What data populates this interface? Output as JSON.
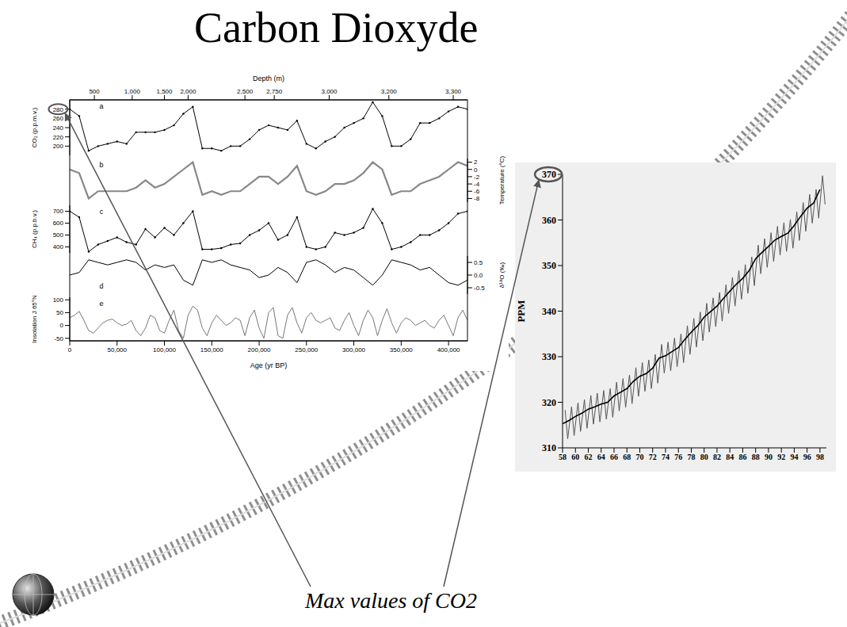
{
  "title": "Carbon Dioxyde",
  "annotation": "Max values of CO2",
  "chart_data": [
    {
      "type": "line",
      "xlabel": "Age (yr BP)",
      "xlim": [
        0,
        420000
      ],
      "xticks": [
        0,
        {
          "value": 50000,
          "label": "50,000"
        },
        {
          "value": 100000,
          "label": "100,000"
        },
        {
          "value": 150000,
          "label": "150,000"
        },
        {
          "value": 200000,
          "label": "200,000"
        },
        {
          "value": 250000,
          "label": "250,000"
        },
        {
          "value": 300000,
          "label": "300,000"
        },
        {
          "value": 350000,
          "label": "350,000"
        },
        {
          "value": 400000,
          "label": "400,000"
        }
      ],
      "x2label": "Depth (m)",
      "x2ticks": [
        {
          "value": 26000,
          "label": "500"
        },
        {
          "value": 66000,
          "label": "1,000"
        },
        {
          "value": 100000,
          "label": "1,500"
        },
        {
          "value": 125000,
          "label": "2,000"
        },
        {
          "value": 185000,
          "label": "2,500"
        },
        {
          "value": 216000,
          "label": "2,750"
        },
        {
          "value": 274000,
          "label": "3,000"
        },
        {
          "value": 337000,
          "label": "3,200"
        },
        {
          "value": 405000,
          "label": "3,300"
        }
      ],
      "series": [
        {
          "name": "a",
          "ylabel": "CO₂ (p.p.m.v.)",
          "color": "#000000",
          "marker": "circle",
          "ylim": [
            180,
            300
          ],
          "yticks": [
            200,
            220,
            240,
            260,
            280
          ],
          "x": [
            0,
            10000,
            20000,
            30000,
            40000,
            50000,
            60000,
            70000,
            80000,
            90000,
            100000,
            110000,
            120000,
            130000,
            140000,
            150000,
            160000,
            170000,
            180000,
            190000,
            200000,
            210000,
            220000,
            230000,
            240000,
            250000,
            260000,
            270000,
            280000,
            290000,
            300000,
            310000,
            320000,
            330000,
            340000,
            350000,
            360000,
            370000,
            380000,
            390000,
            400000,
            410000,
            420000
          ],
          "values": [
            280,
            265,
            190,
            200,
            205,
            210,
            205,
            230,
            230,
            230,
            235,
            245,
            270,
            285,
            195,
            195,
            190,
            200,
            200,
            215,
            235,
            245,
            240,
            235,
            255,
            205,
            195,
            210,
            220,
            240,
            250,
            260,
            295,
            265,
            200,
            200,
            215,
            250,
            250,
            260,
            275,
            285,
            280
          ]
        },
        {
          "name": "b",
          "ylabel": "Temperature (°C)",
          "axis": "y2",
          "color": "#888888",
          "ylim": [
            -9,
            3
          ],
          "yticks": [
            2,
            0,
            -2,
            -4,
            -6,
            -8
          ],
          "x": [
            0,
            10000,
            20000,
            30000,
            40000,
            50000,
            60000,
            70000,
            80000,
            90000,
            100000,
            110000,
            120000,
            130000,
            140000,
            150000,
            160000,
            170000,
            180000,
            190000,
            200000,
            210000,
            220000,
            230000,
            240000,
            250000,
            260000,
            270000,
            280000,
            290000,
            300000,
            310000,
            320000,
            330000,
            340000,
            350000,
            360000,
            370000,
            380000,
            390000,
            400000,
            410000,
            420000
          ],
          "values": [
            0,
            -1,
            -8,
            -6,
            -6,
            -6,
            -6,
            -5,
            -3,
            -5,
            -4,
            -2,
            0,
            2,
            -7,
            -6,
            -7,
            -6,
            -6,
            -4,
            -2,
            -2,
            -4,
            -2,
            1,
            -6,
            -7,
            -6,
            -4,
            -4,
            -3,
            -1,
            2,
            0,
            -7,
            -6,
            -6,
            -4,
            -3,
            -2,
            0,
            2,
            1
          ]
        },
        {
          "name": "c",
          "ylabel": "CH₄ (p.p.b.v.)",
          "color": "#000000",
          "marker": "circle",
          "ylim": [
            350,
            750
          ],
          "yticks": [
            400,
            500,
            600,
            700
          ],
          "x": [
            0,
            10000,
            20000,
            30000,
            40000,
            50000,
            60000,
            70000,
            80000,
            90000,
            100000,
            110000,
            120000,
            130000,
            140000,
            150000,
            160000,
            170000,
            180000,
            190000,
            200000,
            210000,
            220000,
            230000,
            240000,
            250000,
            260000,
            270000,
            280000,
            290000,
            300000,
            310000,
            320000,
            330000,
            340000,
            350000,
            360000,
            370000,
            380000,
            390000,
            400000,
            410000,
            420000
          ],
          "values": [
            700,
            650,
            360,
            420,
            450,
            480,
            440,
            420,
            550,
            480,
            560,
            500,
            600,
            700,
            380,
            380,
            390,
            420,
            430,
            500,
            540,
            600,
            460,
            500,
            650,
            400,
            380,
            400,
            520,
            500,
            520,
            560,
            720,
            600,
            380,
            400,
            440,
            500,
            500,
            540,
            600,
            680,
            700
          ]
        },
        {
          "name": "d",
          "ylabel": "δ¹⁸O (‰)",
          "axis": "y2",
          "color": "#000000",
          "ylim": [
            -0.75,
            0.75
          ],
          "yticks": [
            -0.5,
            {
              "value": 0,
              "label": "0.0"
            },
            0.5
          ],
          "x": [
            0,
            10000,
            20000,
            30000,
            40000,
            50000,
            60000,
            70000,
            80000,
            90000,
            100000,
            110000,
            120000,
            130000,
            140000,
            150000,
            160000,
            170000,
            180000,
            190000,
            200000,
            210000,
            220000,
            230000,
            240000,
            250000,
            260000,
            270000,
            280000,
            290000,
            300000,
            310000,
            320000,
            330000,
            340000,
            350000,
            360000,
            370000,
            380000,
            390000,
            400000,
            410000,
            420000
          ],
          "values": [
            0.0,
            0.1,
            0.6,
            0.5,
            0.4,
            0.5,
            0.6,
            0.5,
            0.2,
            0.4,
            0.3,
            0.4,
            -0.2,
            -0.4,
            0.6,
            0.5,
            0.6,
            0.4,
            0.3,
            0.2,
            -0.1,
            0.0,
            0.3,
            0.1,
            -0.3,
            0.5,
            0.6,
            0.4,
            0.1,
            0.3,
            0.2,
            -0.1,
            -0.4,
            0.0,
            0.6,
            0.5,
            0.4,
            0.2,
            0.3,
            0.0,
            -0.3,
            -0.4,
            -0.2
          ]
        },
        {
          "name": "e",
          "ylabel": "Insolation J 65°N",
          "color": "#777777",
          "ylim": [
            -60,
            110
          ],
          "yticks": [
            -50,
            0,
            50,
            100
          ],
          "x": [
            0,
            5000,
            10000,
            15000,
            20000,
            25000,
            30000,
            35000,
            40000,
            45000,
            50000,
            55000,
            60000,
            65000,
            70000,
            75000,
            80000,
            85000,
            90000,
            95000,
            100000,
            105000,
            110000,
            115000,
            120000,
            125000,
            130000,
            135000,
            140000,
            145000,
            150000,
            155000,
            160000,
            165000,
            170000,
            175000,
            180000,
            185000,
            190000,
            195000,
            200000,
            205000,
            210000,
            215000,
            220000,
            225000,
            230000,
            235000,
            240000,
            245000,
            250000,
            255000,
            260000,
            265000,
            270000,
            275000,
            280000,
            285000,
            290000,
            295000,
            300000,
            305000,
            310000,
            315000,
            320000,
            325000,
            330000,
            335000,
            340000,
            345000,
            350000,
            355000,
            360000,
            365000,
            370000,
            375000,
            380000,
            385000,
            390000,
            395000,
            400000,
            405000,
            410000,
            415000,
            420000
          ],
          "values": [
            30,
            40,
            55,
            20,
            -20,
            -30,
            -10,
            10,
            20,
            25,
            10,
            0,
            5,
            20,
            -20,
            -40,
            -10,
            40,
            30,
            -20,
            -30,
            20,
            60,
            -20,
            -50,
            40,
            75,
            60,
            -10,
            -40,
            10,
            40,
            20,
            0,
            10,
            30,
            20,
            -40,
            30,
            60,
            -10,
            -50,
            50,
            70,
            -40,
            -50,
            40,
            70,
            10,
            -30,
            30,
            50,
            20,
            10,
            20,
            30,
            -10,
            -20,
            20,
            50,
            0,
            -40,
            20,
            60,
            30,
            -40,
            20,
            65,
            10,
            -30,
            10,
            30,
            20,
            0,
            10,
            20,
            0,
            -10,
            20,
            40,
            0,
            -40,
            30,
            60,
            20
          ]
        }
      ]
    },
    {
      "type": "line",
      "ylabel": "PPM",
      "xlim": [
        58,
        99
      ],
      "xticks": [
        58,
        60,
        62,
        64,
        66,
        68,
        70,
        72,
        74,
        76,
        78,
        80,
        82,
        84,
        86,
        88,
        90,
        92,
        94,
        96,
        98
      ],
      "ylim": [
        310,
        370
      ],
      "yticks": [
        310,
        320,
        330,
        340,
        350,
        360,
        370
      ],
      "series": [
        {
          "color": "#555555",
          "x": [
            58.4,
            58.8,
            59.4,
            59.8,
            60.4,
            60.8,
            61.4,
            61.8,
            62.4,
            62.8,
            63.4,
            63.8,
            64.4,
            64.8,
            65.4,
            65.8,
            66.4,
            66.8,
            67.4,
            67.8,
            68.4,
            68.8,
            69.4,
            69.8,
            70.4,
            70.8,
            71.4,
            71.8,
            72.4,
            72.8,
            73.4,
            73.8,
            74.4,
            74.8,
            75.4,
            75.8,
            76.4,
            76.8,
            77.4,
            77.8,
            78.4,
            78.8,
            79.4,
            79.8,
            80.4,
            80.8,
            81.4,
            81.8,
            82.4,
            82.8,
            83.4,
            83.8,
            84.4,
            84.8,
            85.4,
            85.8,
            86.4,
            86.8,
            87.4,
            87.8,
            88.4,
            88.8,
            89.4,
            89.8,
            90.4,
            90.8,
            91.4,
            91.8,
            92.4,
            92.8,
            93.4,
            93.8,
            94.4,
            94.8,
            95.4,
            95.8,
            96.4,
            96.8,
            97.4,
            97.8,
            98.4,
            98.8
          ],
          "values": [
            318.3,
            312.0,
            319.0,
            312.7,
            319.9,
            313.6,
            320.6,
            314.3,
            321.5,
            315.2,
            322.0,
            315.7,
            322.6,
            316.3,
            323.0,
            316.7,
            324.4,
            318.1,
            325.2,
            318.9,
            326.0,
            319.7,
            327.6,
            321.3,
            328.7,
            322.4,
            329.3,
            323.0,
            330.5,
            324.2,
            332.7,
            326.4,
            333.2,
            326.9,
            334.1,
            327.8,
            335.0,
            328.7,
            336.8,
            330.5,
            338.4,
            332.1,
            339.8,
            333.5,
            341.7,
            335.4,
            342.9,
            336.6,
            344.1,
            337.8,
            345.8,
            339.5,
            347.4,
            341.1,
            348.9,
            342.6,
            350.2,
            343.9,
            351.9,
            345.6,
            354.5,
            348.2,
            355.9,
            349.6,
            357.2,
            350.9,
            358.6,
            352.3,
            359.4,
            353.1,
            360.1,
            353.8,
            361.8,
            355.5,
            363.8,
            357.5,
            365.6,
            359.3,
            366.7,
            360.4,
            369.7,
            363.4
          ]
        },
        {
          "color": "#000000",
          "x": [
            58,
            59,
            60,
            61,
            62,
            63,
            64,
            65,
            66,
            67,
            68,
            69,
            70,
            71,
            72,
            73,
            74,
            75,
            76,
            77,
            78,
            79,
            80,
            81,
            82,
            83,
            84,
            85,
            86,
            87,
            88,
            89,
            90,
            91,
            92,
            93,
            94,
            95,
            96,
            97,
            98
          ],
          "values": [
            315.3,
            316.0,
            316.9,
            317.6,
            318.5,
            319.0,
            319.6,
            320.0,
            321.4,
            322.2,
            323.0,
            324.6,
            325.7,
            326.3,
            327.5,
            329.7,
            330.2,
            331.1,
            332.0,
            333.8,
            335.4,
            336.8,
            338.7,
            339.9,
            341.1,
            342.8,
            344.4,
            345.9,
            347.2,
            348.9,
            351.5,
            352.9,
            354.2,
            355.6,
            356.4,
            357.1,
            358.8,
            360.8,
            362.6,
            363.7,
            366.7
          ]
        }
      ]
    }
  ]
}
